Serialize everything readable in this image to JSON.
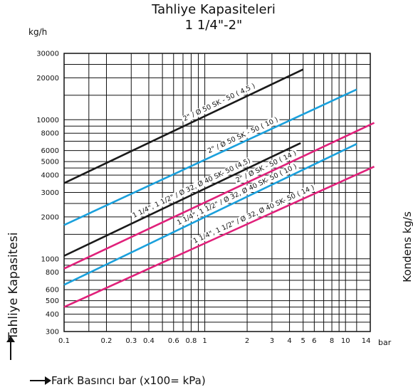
{
  "title": "Tahliye Kapasiteleri",
  "subtitle": "1 1/4\"-2\"",
  "y_unit": "kg/h",
  "x_unit": "bar",
  "ylabel": "Tahliye Kapasitesi",
  "xlabel": "Fark Basıncı bar (x100= kPa)",
  "right_label": "Kondens kg/s",
  "chart_data": {
    "type": "line",
    "xscale": "log",
    "yscale": "log",
    "xlim": [
      0.1,
      15
    ],
    "ylim": [
      300,
      30000
    ],
    "x_ticks": [
      {
        "v": 0.1,
        "label": "0.1"
      },
      {
        "v": 0.2,
        "label": "0.2"
      },
      {
        "v": 0.3,
        "label": "0.3"
      },
      {
        "v": 0.4,
        "label": "0.4"
      },
      {
        "v": 0.6,
        "label": "0.6"
      },
      {
        "v": 0.8,
        "label": "0.8"
      },
      {
        "v": 1,
        "label": "1"
      },
      {
        "v": 2,
        "label": "2"
      },
      {
        "v": 3,
        "label": "3"
      },
      {
        "v": 4,
        "label": "4"
      },
      {
        "v": 5,
        "label": "5"
      },
      {
        "v": 6,
        "label": "6"
      },
      {
        "v": 8,
        "label": "8"
      },
      {
        "v": 10,
        "label": "10"
      },
      {
        "v": 14,
        "label": "14"
      }
    ],
    "y_ticks": [
      {
        "v": 300,
        "label": "300"
      },
      {
        "v": 400,
        "label": "400"
      },
      {
        "v": 500,
        "label": "500"
      },
      {
        "v": 600,
        "label": "600"
      },
      {
        "v": 800,
        "label": "800"
      },
      {
        "v": 1000,
        "label": "1000"
      },
      {
        "v": 2000,
        "label": "2000"
      },
      {
        "v": 3000,
        "label": "3000"
      },
      {
        "v": 4000,
        "label": "4000"
      },
      {
        "v": 5000,
        "label": "5000"
      },
      {
        "v": 6000,
        "label": "6000"
      },
      {
        "v": 8000,
        "label": "8000"
      },
      {
        "v": 10000,
        "label": "10000"
      },
      {
        "v": 20000,
        "label": "20000"
      },
      {
        "v": 30000,
        "label": "30000"
      }
    ],
    "x_grid": [
      0.1,
      0.15,
      0.2,
      0.3,
      0.4,
      0.5,
      0.6,
      0.7,
      0.8,
      0.9,
      1,
      2,
      3,
      4,
      5,
      6,
      7,
      8,
      9,
      10,
      12,
      15
    ],
    "y_grid": [
      300,
      350,
      400,
      450,
      500,
      600,
      700,
      800,
      900,
      1000,
      1500,
      2000,
      2500,
      3000,
      3500,
      4000,
      4500,
      5000,
      6000,
      7000,
      8000,
      9000,
      10000,
      15000,
      20000,
      25000,
      30000
    ],
    "grid": true,
    "series": [
      {
        "name": "2\" / Ø 50 SK - 50 ( 4,5 )",
        "color": "#1a1a1a",
        "x": [
          0.1,
          5
        ],
        "y": [
          3500,
          23000
        ]
      },
      {
        "name": "2\" / Ø 50 SK - 50 ( 10 )",
        "color": "#1aa0dc",
        "x": [
          0.1,
          12
        ],
        "y": [
          1750,
          16500
        ]
      },
      {
        "name": "1 1/4\", 1 1/2\" / Ø 32, Ø 40 SK- 50 (4,5)",
        "color": "#1a1a1a",
        "x": [
          0.1,
          4.8
        ],
        "y": [
          1050,
          6800
        ]
      },
      {
        "name": "2\" / Ø SK - 50 ( 14 )",
        "color": "#e0207a",
        "x": [
          0.1,
          16
        ],
        "y": [
          850,
          9500
        ]
      },
      {
        "name": "1 1/4\", 1 1/2\" / Ø 32, Ø 40 SK- 50 ( 10 )",
        "color": "#1aa0dc",
        "x": [
          0.1,
          12
        ],
        "y": [
          650,
          6700
        ]
      },
      {
        "name": "1 1/4\", 1 1/2\" / Ø 32, Ø 40 SK- 50 ( 14 )",
        "color": "#e0207a",
        "x": [
          0.1,
          16
        ],
        "y": [
          450,
          4600
        ]
      }
    ]
  }
}
